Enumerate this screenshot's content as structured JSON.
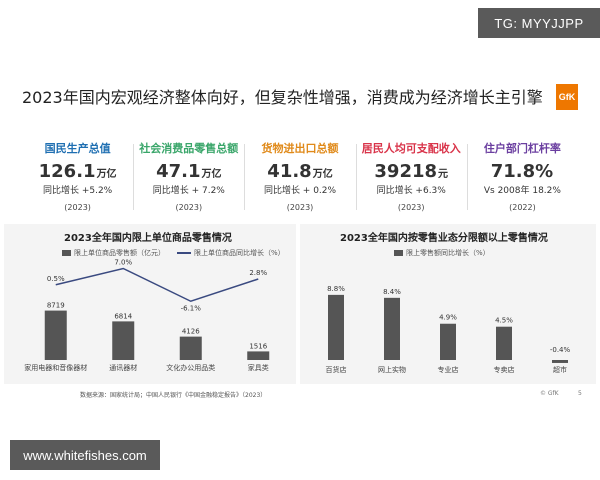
{
  "watermark_top": "TG: MYYJJPP",
  "watermark_bottom": "www.whitefishes.com",
  "headline": "2023年国内宏观经济整体向好，但复杂性增强，消费成为经济增长主引擎",
  "logo_text": "GfK",
  "colors": {
    "bar": "#555555",
    "line": "#3a4a80",
    "panel": "#f4f4f4"
  },
  "kpis": [
    {
      "label": "国民生产总值",
      "value": "126.1",
      "unit": "万亿",
      "growth": "同比增长 +5.2%",
      "year": "(2023)",
      "color": "#1f6fb2"
    },
    {
      "label": "社会消费品零售总额",
      "value": "47.1",
      "unit": "万亿",
      "growth": "同比增长 + 7.2%",
      "year": "(2023)",
      "color": "#3aa66a"
    },
    {
      "label": "货物进出口总额",
      "value": "41.8",
      "unit": "万亿",
      "growth": "同比增长 + 0.2%",
      "year": "(2023)",
      "color": "#e08a1a"
    },
    {
      "label": "居民人均可支配收入",
      "value": "39218",
      "unit": "元",
      "growth": "同比增长 +6.3%",
      "year": "(2023)",
      "color": "#d9344a"
    },
    {
      "label": "住户部门杠杆率",
      "value": "71.8%",
      "unit": "",
      "growth": "Vs 2008年 18.2%",
      "year": "(2022)",
      "color": "#6b3fa0"
    }
  ],
  "chart_data": [
    {
      "type": "bar",
      "title": "2023全年国内限上单位商品零售情况",
      "categories": [
        "家用电器和音像器材",
        "通讯器材",
        "文化办公用品类",
        "家具类"
      ],
      "series": [
        {
          "name": "限上单位商品零售额（亿元）",
          "type": "bar",
          "values": [
            8719,
            6814,
            4126,
            1516
          ],
          "labels": [
            "8719",
            "6814",
            "4126",
            "1516"
          ]
        },
        {
          "name": "限上单位商品同比增长（%）",
          "type": "line",
          "values": [
            0.5,
            7.0,
            -6.1,
            2.8
          ],
          "labels": [
            "0.5%",
            "7.0%",
            "-6.1%",
            "2.8%"
          ]
        }
      ],
      "bar_ylim": [
        0,
        12000
      ],
      "line_ylim": [
        -8,
        8
      ],
      "grid": false,
      "legend_position": "top"
    },
    {
      "type": "bar",
      "title": "2023全年国内按零售业态分限额以上零售情况",
      "categories": [
        "百货店",
        "网上实物",
        "专业店",
        "专卖店",
        "超市"
      ],
      "series": [
        {
          "name": "限上零售额同比增长（%）",
          "type": "bar",
          "values": [
            8.8,
            8.4,
            4.9,
            4.5,
            -0.4
          ],
          "labels": [
            "8.8%",
            "8.4%",
            "4.9%",
            "4.5%",
            "-0.4%"
          ]
        }
      ],
      "ylim": [
        -1,
        10
      ],
      "grid": false,
      "legend_position": "top"
    }
  ],
  "footer": {
    "source": "数据来源：国家统计局；中国人民银行《中国金融稳定报告》（2023）",
    "brand": "© GfK",
    "page": "5"
  }
}
